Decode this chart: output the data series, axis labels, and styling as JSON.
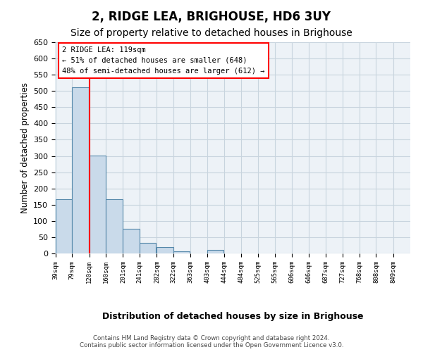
{
  "title": "2, RIDGE LEA, BRIGHOUSE, HD6 3UY",
  "subtitle": "Size of property relative to detached houses in Brighouse",
  "xlabel": "Distribution of detached houses by size in Brighouse",
  "ylabel": "Number of detached properties",
  "annotation_line1": "2 RIDGE LEA: 119sqm",
  "annotation_line2": "← 51% of detached houses are smaller (648)",
  "annotation_line3": "48% of semi-detached houses are larger (612) →",
  "footnote1": "Contains HM Land Registry data © Crown copyright and database right 2024.",
  "footnote2": "Contains public sector information licensed under the Open Government Licence v3.0.",
  "bar_color": "#c9daea",
  "bar_edge_color": "#5588aa",
  "red_line_x": 120,
  "bin_starts": [
    39,
    79,
    120,
    160,
    201,
    241,
    282,
    322,
    363,
    403,
    444,
    484,
    525,
    565,
    606,
    646,
    687,
    727,
    768,
    808,
    849
  ],
  "bin_labels": [
    "39sqm",
    "79sqm",
    "120sqm",
    "160sqm",
    "201sqm",
    "241sqm",
    "282sqm",
    "322sqm",
    "363sqm",
    "403sqm",
    "444sqm",
    "484sqm",
    "525sqm",
    "565sqm",
    "606sqm",
    "646sqm",
    "687sqm",
    "727sqm",
    "768sqm",
    "808sqm",
    "849sqm"
  ],
  "values": [
    167,
    511,
    302,
    167,
    76,
    32,
    20,
    7,
    0,
    10,
    0,
    0,
    0,
    0,
    0,
    0,
    0,
    0,
    0,
    0,
    0
  ],
  "ylim": [
    0,
    650
  ],
  "yticks": [
    0,
    50,
    100,
    150,
    200,
    250,
    300,
    350,
    400,
    450,
    500,
    550,
    600,
    650
  ],
  "bg_axes": "#edf2f7",
  "grid_color": "#c8d4de",
  "title_fontsize": 12,
  "subtitle_fontsize": 10
}
